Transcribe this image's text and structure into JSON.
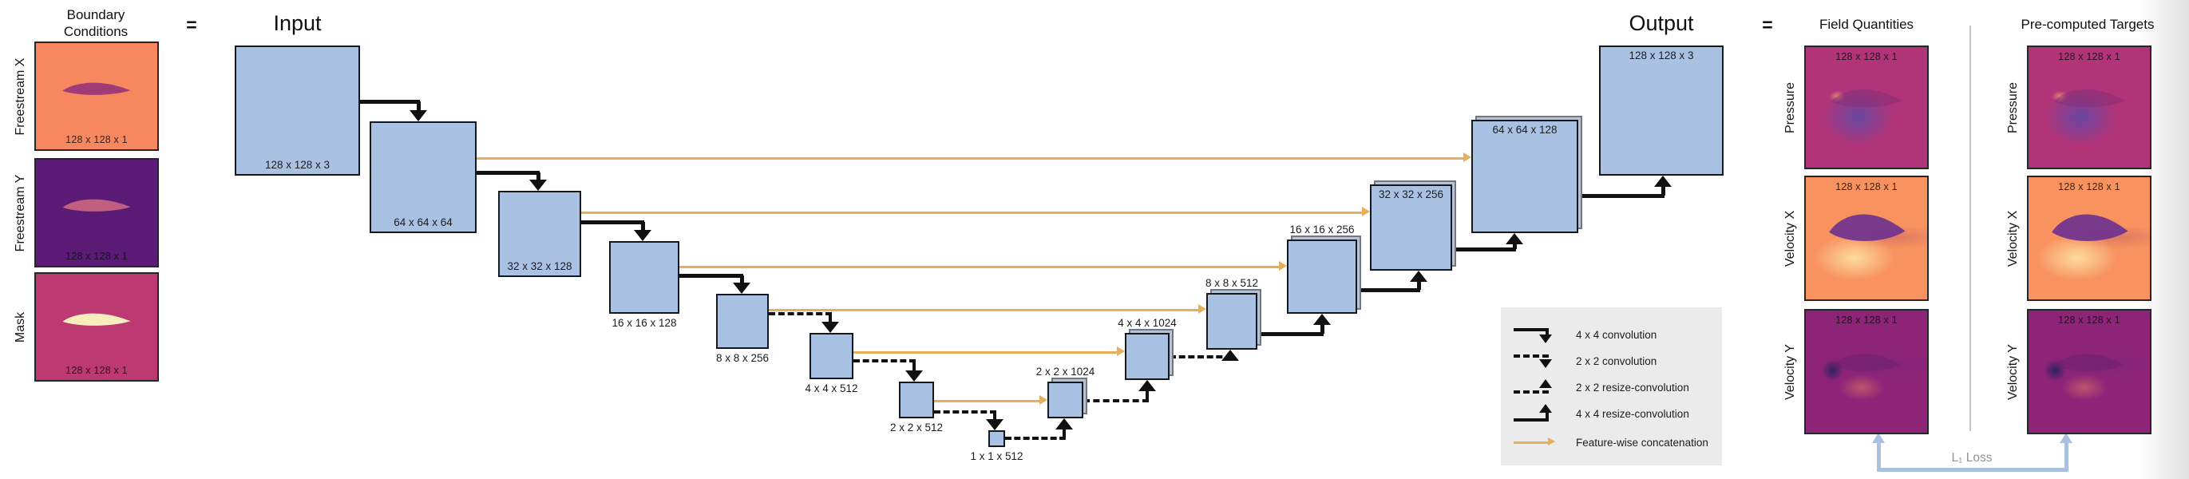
{
  "boundary": {
    "title": "Boundary\nConditions",
    "items": [
      {
        "label": "Freestream X",
        "caption": "128 x 128 x 1",
        "kind": "freestream-x"
      },
      {
        "label": "Freestream Y",
        "caption": "128 x 128 x 1",
        "kind": "freestream-y"
      },
      {
        "label": "Mask",
        "caption": "128 x 128 x 1",
        "kind": "mask"
      }
    ]
  },
  "equals": "=",
  "unet": {
    "input_title": "Input",
    "output_title": "Output",
    "blocks": [
      {
        "id": "input",
        "label": "128 x 128 x 3"
      },
      {
        "id": "enc-64",
        "label": "64 x 64 x 64"
      },
      {
        "id": "enc-32",
        "label": "32 x 32 x 128"
      },
      {
        "id": "enc-16",
        "label": "16 x 16 x 128"
      },
      {
        "id": "enc-8",
        "label": "8 x 8 x 256"
      },
      {
        "id": "enc-4",
        "label": "4 x 4 x 512"
      },
      {
        "id": "enc-2",
        "label": "2 x 2 x 512"
      },
      {
        "id": "bottleneck",
        "label": "1 x 1 x 512"
      },
      {
        "id": "dec-2",
        "label": "2 x 2 x 1024"
      },
      {
        "id": "dec-4",
        "label": "4 x 4 x 1024"
      },
      {
        "id": "dec-8",
        "label": "8 x 8 x 512"
      },
      {
        "id": "dec-16",
        "label": "16 x 16 x 256"
      },
      {
        "id": "dec-32",
        "label": "32 x 32 x 256"
      },
      {
        "id": "dec-64",
        "label": "64 x 64 x 128"
      },
      {
        "id": "output",
        "label": "128 x 128 x 3"
      }
    ]
  },
  "legend": {
    "items": [
      {
        "label": "4 x 4 convolution",
        "type": "conv-solid"
      },
      {
        "label": "2 x 2 convolution",
        "type": "conv-dashed"
      },
      {
        "label": "2 x 2 resize-convolution",
        "type": "resize-dashed"
      },
      {
        "label": "4 x 4 resize-convolution",
        "type": "resize-solid"
      },
      {
        "label": "Feature-wise concatenation",
        "type": "concat"
      }
    ]
  },
  "fields": {
    "title": "Field Quantities",
    "items": [
      {
        "label": "Pressure",
        "caption": "128 x 128 x 1",
        "kind": "pressure"
      },
      {
        "label": "Velocity X",
        "caption": "128 x 128 x 1",
        "kind": "velocity-x"
      },
      {
        "label": "Velocity Y",
        "caption": "128 x 128 x 1",
        "kind": "velocity-y"
      }
    ]
  },
  "targets": {
    "title": "Pre-computed Targets",
    "items": [
      {
        "label": "Pressure",
        "caption": "128 x 128 x 1",
        "kind": "pressure"
      },
      {
        "label": "Velocity X",
        "caption": "128 x 128 x 1",
        "kind": "velocity-x"
      },
      {
        "label": "Velocity Y",
        "caption": "128 x 128 x 1",
        "kind": "velocity-y"
      }
    ]
  },
  "loss_label": "L₁ Loss",
  "colors": {
    "block_fill": "#a9c2e4",
    "block_border": "#15181c",
    "stack_fill": "#b7c3d4",
    "stack_border": "#6f7884",
    "arrow": "#111111",
    "skip": "#e7ae5c",
    "legend_bg": "#ebebeb",
    "loss": "#a9c0e1",
    "freestream_x_bg": "#f6875f",
    "freestream_x_foil": "#a03b78",
    "freestream_y_bg": "#5c1a77",
    "freestream_y_foil": "#c05f80",
    "mask_bg": "#bc3a71",
    "mask_foil": "#f8edbd",
    "pressure_bg": "#b23478",
    "velocity_x_bg": "#f8935f",
    "velocity_y_bg": "#8d2478"
  }
}
